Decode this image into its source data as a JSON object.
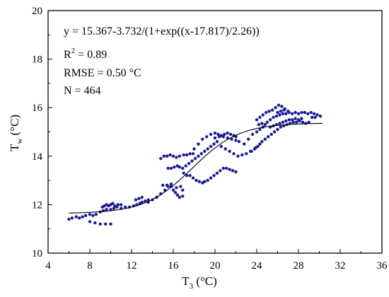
{
  "chart_data": {
    "type": "scatter",
    "xlabel": {
      "main": "T",
      "sub": "3",
      "unit": " (°C)"
    },
    "ylabel": {
      "main": "T",
      "sub": "w",
      "unit": " (°C)"
    },
    "xlim": [
      4,
      36
    ],
    "ylim": [
      10,
      20
    ],
    "x_ticks": [
      4,
      8,
      12,
      16,
      20,
      24,
      28,
      32,
      36
    ],
    "y_ticks": [
      10,
      12,
      14,
      16,
      18,
      20
    ],
    "grid": false,
    "marker_color": "#1a1a9c",
    "fit_color": "#000000",
    "annotations": {
      "equation": "y = 15.367-3.732/(1+exp((x-17.817)/2.26))",
      "r2_main": "R",
      "r2_sup": "2",
      "r2_value": " = 0.89",
      "rmse": "RMSE = 0.50 °C",
      "n": "N = 464"
    },
    "fit": {
      "a": 15.367,
      "b": 3.732,
      "x0": 17.817,
      "dx": 2.26,
      "x_range": [
        6,
        30.3
      ]
    },
    "series": [
      {
        "points": [
          [
            6.0,
            11.4
          ],
          [
            6.3,
            11.45
          ],
          [
            6.7,
            11.5
          ],
          [
            7.0,
            11.45
          ],
          [
            7.3,
            11.5
          ],
          [
            7.6,
            11.55
          ],
          [
            8.0,
            11.6
          ],
          [
            8.3,
            11.55
          ],
          [
            8.6,
            11.6
          ],
          [
            8.0,
            11.3
          ],
          [
            8.5,
            11.25
          ],
          [
            9.0,
            11.2
          ],
          [
            9.5,
            11.2
          ],
          [
            10.0,
            11.2
          ],
          [
            9.0,
            11.7
          ],
          [
            9.3,
            11.75
          ],
          [
            9.6,
            11.8
          ],
          [
            10.0,
            11.8
          ],
          [
            10.3,
            11.85
          ],
          [
            10.6,
            11.9
          ],
          [
            9.2,
            11.9
          ],
          [
            9.4,
            11.95
          ],
          [
            9.6,
            12.0
          ],
          [
            9.8,
            11.95
          ],
          [
            10.0,
            12.0
          ],
          [
            10.2,
            12.05
          ],
          [
            10.4,
            11.95
          ],
          [
            10.7,
            12.0
          ],
          [
            11.0,
            12.0
          ],
          [
            11.0,
            11.85
          ],
          [
            11.4,
            11.9
          ],
          [
            11.8,
            11.9
          ],
          [
            12.2,
            11.95
          ],
          [
            12.5,
            12.0
          ],
          [
            12.8,
            12.05
          ],
          [
            13.0,
            12.1
          ],
          [
            13.3,
            12.15
          ],
          [
            13.6,
            12.2
          ],
          [
            12.4,
            12.2
          ],
          [
            12.7,
            12.25
          ],
          [
            13.0,
            12.3
          ],
          [
            13.6,
            12.1
          ],
          [
            14.0,
            12.2
          ],
          [
            14.4,
            12.3
          ],
          [
            14.8,
            12.45
          ],
          [
            15.2,
            12.6
          ],
          [
            15.5,
            12.75
          ],
          [
            15.8,
            12.85
          ],
          [
            15.0,
            12.8
          ],
          [
            15.4,
            12.8
          ],
          [
            15.8,
            12.75
          ],
          [
            16.0,
            12.6
          ],
          [
            16.2,
            12.5
          ],
          [
            16.4,
            12.4
          ],
          [
            16.6,
            12.3
          ],
          [
            16.9,
            12.35
          ],
          [
            16.3,
            12.7
          ],
          [
            16.7,
            12.75
          ],
          [
            16.9,
            12.6
          ],
          [
            15.5,
            13.5
          ],
          [
            15.8,
            13.5
          ],
          [
            16.1,
            13.55
          ],
          [
            16.4,
            13.6
          ],
          [
            16.6,
            13.55
          ],
          [
            16.9,
            13.5
          ],
          [
            17.0,
            13.3
          ],
          [
            17.3,
            13.2
          ],
          [
            17.6,
            13.2
          ],
          [
            17.9,
            13.1
          ],
          [
            18.2,
            13.0
          ],
          [
            18.5,
            12.95
          ],
          [
            18.8,
            12.9
          ],
          [
            19.0,
            12.95
          ],
          [
            19.3,
            13.0
          ],
          [
            19.6,
            13.1
          ],
          [
            19.9,
            13.2
          ],
          [
            20.2,
            13.3
          ],
          [
            20.5,
            13.4
          ],
          [
            20.8,
            13.5
          ],
          [
            21.1,
            13.5
          ],
          [
            21.4,
            13.45
          ],
          [
            21.7,
            13.4
          ],
          [
            22.0,
            13.35
          ],
          [
            14.8,
            13.9
          ],
          [
            15.1,
            14.0
          ],
          [
            15.4,
            14.0
          ],
          [
            15.7,
            14.05
          ],
          [
            16.0,
            14.0
          ],
          [
            16.3,
            13.95
          ],
          [
            16.6,
            14.0
          ],
          [
            17.0,
            14.05
          ],
          [
            17.3,
            14.05
          ],
          [
            17.6,
            14.1
          ],
          [
            17.9,
            14.1
          ],
          [
            17.2,
            13.6
          ],
          [
            17.5,
            13.7
          ],
          [
            17.8,
            13.8
          ],
          [
            18.1,
            13.9
          ],
          [
            18.4,
            14.0
          ],
          [
            18.7,
            14.1
          ],
          [
            19.0,
            14.2
          ],
          [
            19.3,
            14.3
          ],
          [
            19.6,
            14.4
          ],
          [
            19.9,
            14.5
          ],
          [
            20.2,
            14.6
          ],
          [
            18.0,
            14.3
          ],
          [
            18.4,
            14.5
          ],
          [
            18.8,
            14.7
          ],
          [
            19.2,
            14.8
          ],
          [
            19.6,
            14.9
          ],
          [
            20.0,
            14.95
          ],
          [
            20.3,
            14.9
          ],
          [
            20.6,
            14.85
          ],
          [
            20.9,
            14.9
          ],
          [
            21.2,
            14.95
          ],
          [
            21.5,
            14.9
          ],
          [
            21.8,
            14.85
          ],
          [
            22.0,
            14.8
          ],
          [
            20.0,
            14.75
          ],
          [
            20.4,
            14.8
          ],
          [
            20.8,
            14.8
          ],
          [
            21.2,
            14.75
          ],
          [
            21.6,
            14.7
          ],
          [
            22.0,
            14.65
          ],
          [
            22.3,
            14.6
          ],
          [
            20.6,
            14.4
          ],
          [
            21.0,
            14.3
          ],
          [
            21.4,
            14.2
          ],
          [
            21.8,
            14.1
          ],
          [
            22.2,
            14.0
          ],
          [
            22.6,
            14.05
          ],
          [
            23.0,
            14.1
          ],
          [
            23.4,
            14.2
          ],
          [
            23.8,
            14.3
          ],
          [
            24.1,
            14.4
          ],
          [
            22.8,
            14.5
          ],
          [
            23.2,
            14.7
          ],
          [
            23.6,
            14.9
          ],
          [
            24.0,
            15.0
          ],
          [
            24.3,
            15.1
          ],
          [
            24.6,
            15.2
          ],
          [
            24.0,
            15.5
          ],
          [
            24.3,
            15.6
          ],
          [
            24.6,
            15.7
          ],
          [
            24.9,
            15.8
          ],
          [
            25.2,
            15.85
          ],
          [
            25.5,
            15.9
          ],
          [
            25.8,
            16.0
          ],
          [
            26.1,
            16.1
          ],
          [
            26.4,
            16.05
          ],
          [
            26.7,
            15.95
          ],
          [
            27.0,
            15.85
          ],
          [
            25.0,
            15.4
          ],
          [
            25.3,
            15.5
          ],
          [
            25.6,
            15.6
          ],
          [
            25.9,
            15.65
          ],
          [
            26.2,
            15.7
          ],
          [
            26.5,
            15.75
          ],
          [
            26.8,
            15.75
          ],
          [
            27.1,
            15.8
          ],
          [
            27.4,
            15.75
          ],
          [
            27.7,
            15.8
          ],
          [
            28.0,
            15.75
          ],
          [
            28.3,
            15.8
          ],
          [
            28.6,
            15.8
          ],
          [
            28.9,
            15.75
          ],
          [
            29.2,
            15.8
          ],
          [
            29.5,
            15.75
          ],
          [
            29.8,
            15.7
          ],
          [
            30.1,
            15.65
          ],
          [
            24.5,
            14.6
          ],
          [
            24.8,
            14.7
          ],
          [
            25.1,
            14.8
          ],
          [
            25.4,
            14.9
          ],
          [
            25.7,
            15.0
          ],
          [
            26.0,
            15.1
          ],
          [
            26.3,
            15.2
          ],
          [
            26.6,
            15.25
          ],
          [
            26.9,
            15.3
          ],
          [
            27.2,
            15.35
          ],
          [
            27.5,
            15.4
          ],
          [
            27.8,
            15.4
          ],
          [
            28.1,
            15.45
          ],
          [
            28.4,
            15.4
          ],
          [
            28.7,
            15.35
          ],
          [
            29.0,
            15.4
          ],
          [
            25.3,
            15.2
          ],
          [
            25.6,
            15.25
          ],
          [
            25.9,
            15.3
          ],
          [
            26.2,
            15.35
          ],
          [
            26.5,
            15.4
          ],
          [
            26.8,
            15.45
          ],
          [
            27.1,
            15.5
          ],
          [
            27.4,
            15.5
          ],
          [
            27.7,
            15.55
          ],
          [
            28.0,
            15.5
          ],
          [
            28.3,
            15.55
          ],
          [
            29.3,
            15.6
          ],
          [
            29.6,
            15.6
          ],
          [
            26.0,
            15.8
          ],
          [
            26.3,
            15.85
          ],
          [
            26.6,
            15.9
          ],
          [
            24.2,
            15.3
          ],
          [
            24.5,
            15.35
          ],
          [
            24.8,
            15.3
          ],
          [
            23.5,
            14.2
          ],
          [
            23.9,
            14.35
          ],
          [
            24.3,
            14.5
          ]
        ]
      }
    ]
  }
}
